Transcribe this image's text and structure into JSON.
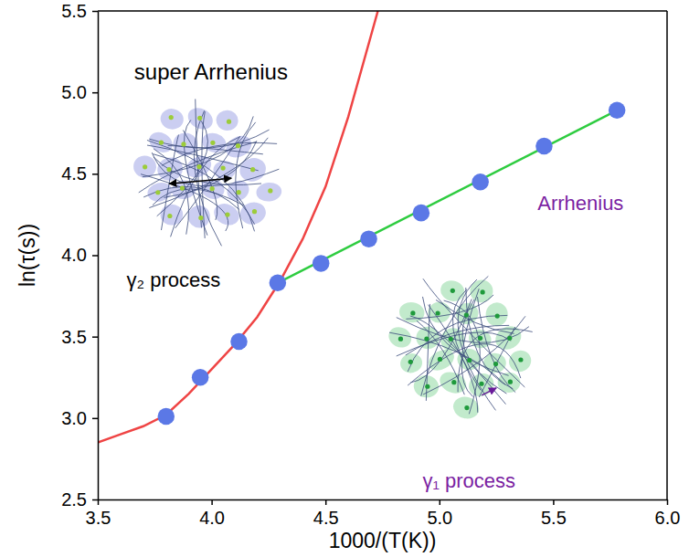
{
  "chart_data": {
    "type": "scatter",
    "x_label": "1000/(T(K))",
    "y_label": "ln(τ(s))",
    "xlim": [
      3.5,
      6.0
    ],
    "xticks": [
      {
        "value": 3.5,
        "label": "3.5"
      },
      {
        "value": 4.0,
        "label": "4.0"
      },
      {
        "value": 4.5,
        "label": "4.5"
      },
      {
        "value": 5.0,
        "label": "5.0"
      },
      {
        "value": 5.5,
        "label": "5.5"
      },
      {
        "value": 6.0,
        "label": "6.0"
      }
    ],
    "ylim": [
      2.5,
      5.5
    ],
    "yticks": [
      {
        "value": 2.5,
        "label": "2.5"
      },
      {
        "value": 3.0,
        "label": "3.0"
      },
      {
        "value": 3.5,
        "label": "3.5"
      },
      {
        "value": 4.0,
        "label": "4.0"
      },
      {
        "value": 4.5,
        "label": "4.5"
      },
      {
        "value": 5.0,
        "label": "5.0"
      },
      {
        "value": 5.5,
        "label": "5.5"
      }
    ],
    "grid": false,
    "series": [
      {
        "type": "line",
        "color": "#ef4444",
        "line_style": "solid",
        "x": [
          3.5,
          3.6,
          3.7,
          3.8,
          3.9,
          4.0,
          4.1,
          4.2,
          4.3,
          4.4,
          4.5,
          4.6,
          4.7,
          4.73
        ],
        "values": [
          2.85,
          2.9,
          2.95,
          3.02,
          3.15,
          3.3,
          3.45,
          3.62,
          3.84,
          4.1,
          4.42,
          4.85,
          5.35,
          5.5
        ]
      },
      {
        "type": "line",
        "color": "#2ecc40",
        "line_style": "solid",
        "x": [
          4.29,
          5.78
        ],
        "values": [
          3.83,
          4.89
        ]
      },
      {
        "type": "scatter",
        "color": "#5b78e6",
        "marker": "circle",
        "x": [
          3.8,
          3.95,
          4.12,
          4.29,
          4.48,
          4.69,
          4.92,
          5.18,
          5.46,
          5.78
        ],
        "values": [
          3.01,
          3.25,
          3.47,
          3.83,
          3.95,
          4.1,
          4.26,
          4.45,
          4.67,
          4.89
        ]
      }
    ],
    "annotations": [
      {
        "text": "super Arrhenius",
        "color": "#000000"
      },
      {
        "text": "Arrhenius",
        "color": "#7b1fa2"
      },
      {
        "text": "γ₂ process",
        "color": "#000000"
      },
      {
        "text": "γ₁ process",
        "color": "#7b1fa2"
      }
    ]
  }
}
